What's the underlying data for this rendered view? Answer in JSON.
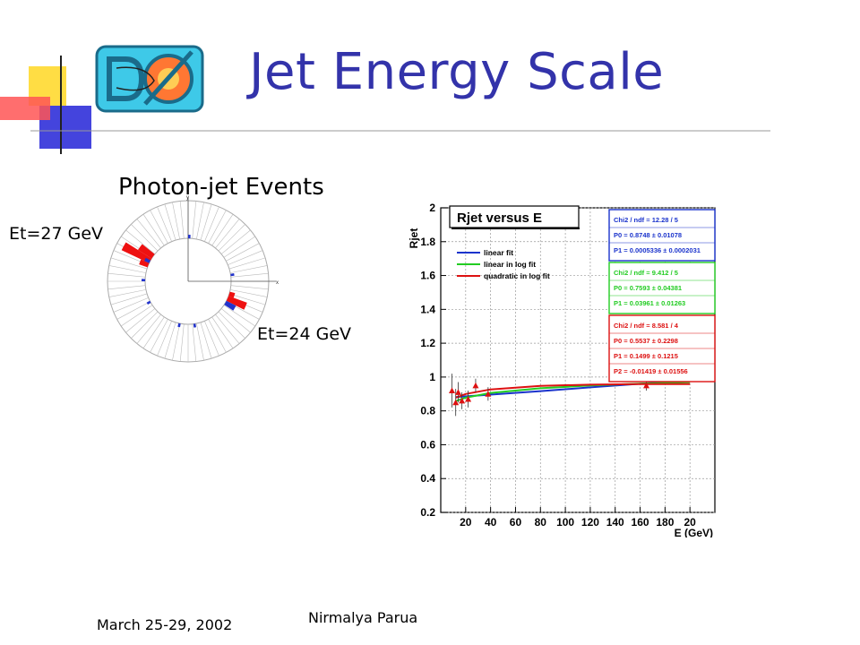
{
  "slide": {
    "title": "Jet Energy Scale",
    "logo_text": "D0",
    "subtitle": "Photon-jet Events",
    "et_label_1": "Et=27 GeV",
    "et_label_2": "Et=24 GeV",
    "footer_date": "March 25-29, 2002",
    "footer_author": "Nirmalya Parua",
    "accent_color": "#3333aa"
  },
  "event_display": {
    "axis_y_label": "y",
    "axis_x_label": "x"
  },
  "chart_data": {
    "type": "scatter",
    "title": "Rjet versus E",
    "ylabel": "Rjet",
    "xlabel": "E (GeV)",
    "xlim": [
      0,
      220
    ],
    "ylim": [
      0.2,
      2
    ],
    "x_ticks": [
      "20",
      "40",
      "60",
      "80",
      "100",
      "120",
      "140",
      "160",
      "180",
      "20"
    ],
    "y_ticks": [
      "0.2",
      "0.4",
      "0.6",
      "0.8",
      "1",
      "1.2",
      "1.4",
      "1.6",
      "1.8",
      "2"
    ],
    "grid": true,
    "legend_position": "top-left",
    "legend": [
      {
        "name": "linear fit",
        "color": "#1a33cc"
      },
      {
        "name": "linear in log fit",
        "color": "#22cc22"
      },
      {
        "name": "quadratic in log fit",
        "color": "#dd1111"
      }
    ],
    "series": [
      {
        "name": "linear fit",
        "color": "#1a33cc",
        "x": [
          12,
          40,
          80,
          120,
          160,
          200
        ],
        "y": [
          0.882,
          0.896,
          0.917,
          0.939,
          0.96,
          0.981
        ]
      },
      {
        "name": "linear in log fit",
        "color": "#22cc22",
        "x": [
          12,
          20,
          40,
          80,
          120,
          160,
          200
        ],
        "y": [
          0.858,
          0.878,
          0.906,
          0.934,
          0.95,
          0.961,
          0.97
        ]
      },
      {
        "name": "quadratic in log fit",
        "color": "#dd1111",
        "x": [
          12,
          20,
          40,
          80,
          120,
          160,
          200
        ],
        "y": [
          0.878,
          0.9,
          0.927,
          0.948,
          0.955,
          0.958,
          0.958
        ]
      }
    ],
    "points": {
      "x": [
        9,
        12,
        14,
        17,
        22,
        28,
        38,
        165
      ],
      "y": [
        0.92,
        0.85,
        0.91,
        0.86,
        0.87,
        0.95,
        0.9,
        0.95
      ],
      "err": [
        0.1,
        0.08,
        0.06,
        0.05,
        0.05,
        0.04,
        0.04,
        0.03
      ],
      "color": "#dd1111"
    },
    "stat_boxes": [
      {
        "color": "#1a33cc",
        "lines": [
          "Chi2 / ndf = 12.28 / 5",
          "P0     = 0.8748 ± 0.01078",
          "P1     = 0.0005336 ± 0.0002031"
        ]
      },
      {
        "color": "#22cc22",
        "lines": [
          "Chi2 / ndf = 9.412 / 5",
          "P0     = 0.7593 ± 0.04381",
          "P1     = 0.03961 ± 0.01263"
        ]
      },
      {
        "color": "#dd1111",
        "lines": [
          "Chi2 / ndf = 8.581 / 4",
          "P0     = 0.5537 ± 0.2298",
          "P1     = 0.1499 ± 0.1215",
          "P2     = -0.01419 ± 0.01556"
        ]
      }
    ]
  }
}
